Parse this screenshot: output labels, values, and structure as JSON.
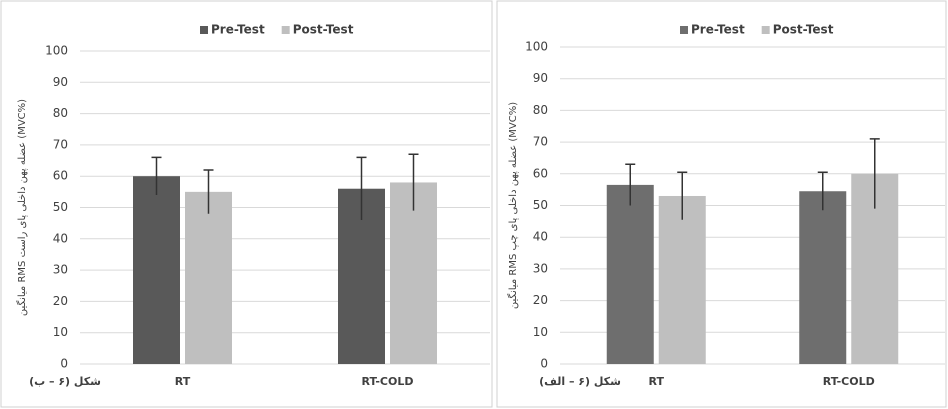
{
  "chart_data": [
    {
      "type": "bar",
      "y_label": "میانگین RMS عضله پهن داخلی پای راست (MVC%)",
      "caption": "شکل (۶ – ب)",
      "categories": [
        "RT",
        "RT-COLD"
      ],
      "series": [
        {
          "name": "Pre-Test",
          "color": "#595959",
          "values": [
            60,
            56
          ],
          "errors": [
            6,
            10
          ]
        },
        {
          "name": "Post-Test",
          "color": "#bfbfbf",
          "values": [
            55,
            58
          ],
          "errors": [
            7,
            9
          ]
        }
      ],
      "ylim": [
        0,
        100
      ],
      "yticks": [
        0,
        10,
        20,
        30,
        40,
        50,
        60,
        70,
        80,
        90,
        100
      ],
      "grid": true,
      "legend": "top"
    },
    {
      "type": "bar",
      "y_label": "میانگین RMS عضله پهن داخلی پای چپ (MVC%)",
      "caption": "شکل (۶ – الف)",
      "categories": [
        "RT",
        "RT-COLD"
      ],
      "series": [
        {
          "name": "Pre-Test",
          "color": "#6e6e6e",
          "values": [
            56.5,
            54.5
          ],
          "errors": [
            6.5,
            6
          ]
        },
        {
          "name": "Post-Test",
          "color": "#bfbfbf",
          "values": [
            53,
            60
          ],
          "errors": [
            7.5,
            11
          ]
        }
      ],
      "ylim": [
        0,
        100
      ],
      "yticks": [
        0,
        10,
        20,
        30,
        40,
        50,
        60,
        70,
        80,
        90,
        100
      ],
      "grid": true,
      "legend": "top"
    }
  ]
}
